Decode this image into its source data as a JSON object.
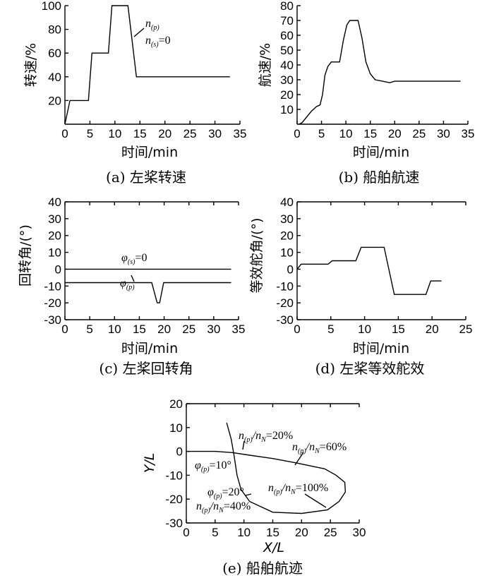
{
  "chart_data": [
    {
      "id": "a",
      "type": "line",
      "caption": "(a) 左桨转速",
      "xlabel": "时间/min",
      "ylabel": "转速/%",
      "xlim": [
        0,
        35
      ],
      "ylim": [
        0,
        100
      ],
      "xticks": [
        0,
        5,
        10,
        15,
        20,
        25,
        30,
        35
      ],
      "yticks": [
        20,
        40,
        60,
        80,
        100
      ],
      "series": [
        {
          "points": [
            [
              0,
              0
            ],
            [
              1,
              20
            ],
            [
              4.7,
              20
            ],
            [
              5.4,
              60
            ],
            [
              8.7,
              60
            ],
            [
              9.4,
              100
            ],
            [
              12.6,
              100
            ],
            [
              14.3,
              40
            ],
            [
              33,
              40
            ]
          ]
        }
      ],
      "annotations": [
        {
          "base": "n",
          "sub": "(p)",
          "suffix": ""
        },
        {
          "base": "n",
          "sub": "(s)",
          "suffix": "=0"
        }
      ]
    },
    {
      "id": "b",
      "type": "line",
      "caption": "(b) 船舶航速",
      "xlabel": "时间/min",
      "ylabel": "航速/%",
      "xlim": [
        0,
        35
      ],
      "ylim": [
        0,
        80
      ],
      "xticks": [
        0,
        5,
        10,
        15,
        20,
        25,
        30,
        35
      ],
      "yticks": [
        10,
        20,
        30,
        40,
        50,
        60,
        70,
        80
      ],
      "series": [
        {
          "points": [
            [
              0.4,
              0
            ],
            [
              1,
              1
            ],
            [
              2,
              5
            ],
            [
              3,
              9
            ],
            [
              4,
              12
            ],
            [
              4.7,
              13
            ],
            [
              5.2,
              20
            ],
            [
              5.7,
              33
            ],
            [
              6.3,
              39
            ],
            [
              7,
              42
            ],
            [
              8.7,
              42
            ],
            [
              9.5,
              57
            ],
            [
              10.2,
              67
            ],
            [
              10.8,
              70
            ],
            [
              12.5,
              70
            ],
            [
              13.3,
              58
            ],
            [
              14.1,
              42
            ],
            [
              15,
              34
            ],
            [
              16,
              30
            ],
            [
              17.5,
              29
            ],
            [
              19,
              28
            ],
            [
              20,
              29
            ],
            [
              25,
              29
            ],
            [
              33.5,
              29
            ]
          ]
        }
      ]
    },
    {
      "id": "c",
      "type": "line",
      "caption": "(c) 左桨回转角",
      "xlabel": "时间/min",
      "ylabel": "回转角/(°)",
      "xlim": [
        0,
        35
      ],
      "ylim": [
        -30,
        40
      ],
      "xticks": [
        0,
        5,
        10,
        15,
        20,
        25,
        30,
        35
      ],
      "yticks": [
        -30,
        -20,
        -10,
        0,
        10,
        20,
        30,
        40
      ],
      "series": [
        {
          "name": "s",
          "points": [
            [
              0,
              0
            ],
            [
              33.5,
              0
            ]
          ]
        },
        {
          "name": "p",
          "points": [
            [
              0,
              -8
            ],
            [
              17.5,
              -8
            ],
            [
              18.6,
              -20
            ],
            [
              19.1,
              -20
            ],
            [
              19.9,
              -8
            ],
            [
              33.5,
              -8
            ]
          ]
        }
      ],
      "annotations": [
        {
          "base": "φ",
          "sub": "(s)",
          "suffix": "=0"
        },
        {
          "base": "φ",
          "sub": "(p)",
          "suffix": ""
        }
      ]
    },
    {
      "id": "d",
      "type": "line",
      "caption": "(d) 左桨等效舵效",
      "xlabel": "时间/min",
      "ylabel": "等效舵角/(°)",
      "xlim": [
        0,
        25
      ],
      "ylim": [
        -30,
        40
      ],
      "xticks": [
        0,
        5,
        10,
        15,
        20,
        25
      ],
      "yticks": [
        -30,
        -20,
        -10,
        0,
        10,
        20,
        30,
        40
      ],
      "series": [
        {
          "points": [
            [
              0,
              0
            ],
            [
              0.6,
              3
            ],
            [
              4.6,
              3
            ],
            [
              5.2,
              5
            ],
            [
              8.7,
              5
            ],
            [
              9.5,
              13
            ],
            [
              12.9,
              13
            ],
            [
              14.4,
              -15
            ],
            [
              19.1,
              -15
            ],
            [
              19.8,
              -7
            ],
            [
              21.4,
              -7
            ]
          ]
        }
      ]
    },
    {
      "id": "e",
      "type": "line",
      "caption": "(e) 船舶航迹",
      "xlabel": "X/L",
      "ylabel": "Y/L",
      "xlim": [
        0,
        30
      ],
      "ylim": [
        -30,
        20
      ],
      "xticks": [
        0,
        5,
        10,
        15,
        20,
        25,
        30
      ],
      "yticks": [
        -30,
        -20,
        -10,
        0,
        10,
        20
      ],
      "series": [
        {
          "points": [
            [
              0,
              0
            ],
            [
              5,
              0
            ],
            [
              8,
              -0.5
            ],
            [
              11,
              -1.6
            ],
            [
              15,
              -3
            ],
            [
              19,
              -4.8
            ],
            [
              22,
              -6.3
            ],
            [
              24,
              -7.3
            ],
            [
              26,
              -10
            ],
            [
              27.5,
              -13
            ],
            [
              27.6,
              -17
            ],
            [
              26.5,
              -21
            ],
            [
              24.5,
              -24.5
            ],
            [
              20,
              -26
            ],
            [
              15,
              -25.5
            ],
            [
              11,
              -21
            ],
            [
              9.5,
              -16
            ],
            [
              8.8,
              -10
            ],
            [
              8.3,
              -2
            ],
            [
              7.8,
              5
            ],
            [
              7,
              12
            ]
          ]
        }
      ],
      "annotations": [
        {
          "parts": [
            [
              "n",
              "(p)"
            ],
            [
              "/n",
              "N"
            ]
          ],
          "suffix": "=20%"
        },
        {
          "parts": [
            [
              "n",
              "(p)"
            ],
            [
              "/n",
              "N"
            ]
          ],
          "suffix": "=60%"
        },
        {
          "parts": [
            [
              "φ",
              "(p)"
            ]
          ],
          "suffix": "=10°"
        },
        {
          "parts": [
            [
              "n",
              "(p)"
            ],
            [
              "/n",
              "N"
            ]
          ],
          "suffix": "=100%"
        },
        {
          "parts": [
            [
              "φ",
              "(p)"
            ]
          ],
          "suffix": "=20°"
        },
        {
          "parts": [
            [
              "n",
              "(p)"
            ],
            [
              "/n",
              "N"
            ]
          ],
          "suffix": "=40%"
        }
      ]
    }
  ]
}
